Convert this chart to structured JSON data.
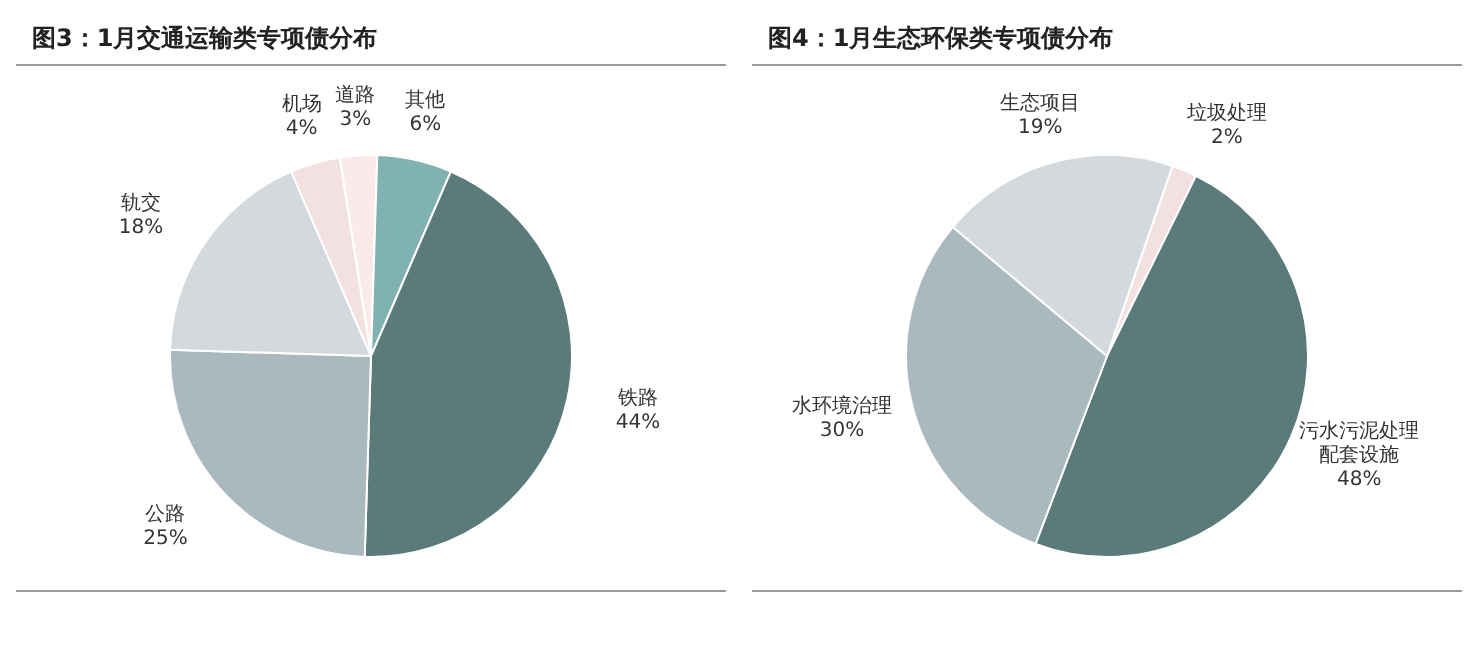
{
  "chart_data": [
    {
      "type": "pie",
      "title": "图3：1月交通运输类专项债分布",
      "categories": [
        "道路",
        "其他",
        "铁路",
        "公路",
        "轨交",
        "机场"
      ],
      "values": [
        3,
        6,
        44,
        25,
        18,
        4
      ],
      "value_labels": [
        "3%",
        "6%",
        "44%",
        "25%",
        "18%",
        "4%"
      ],
      "colors": [
        "#fbeaea",
        "#7fb2b0",
        "#5b7b7a",
        "#a9b9be",
        "#d4d9de",
        "#f3e0e0"
      ],
      "legend": false
    },
    {
      "type": "pie",
      "title": "图4：1月生态环保类专项债分布",
      "categories": [
        "垃圾处理",
        "污水污泥处理配套设施",
        "水环境治理",
        "生态项目"
      ],
      "values": [
        2,
        48,
        30,
        19
      ],
      "value_labels": [
        "2%",
        "48%",
        "30%",
        "19%"
      ],
      "colors": [
        "#f3e0e0",
        "#5b7b7a",
        "#a9b9be",
        "#d4d9de"
      ],
      "legend": false
    }
  ]
}
